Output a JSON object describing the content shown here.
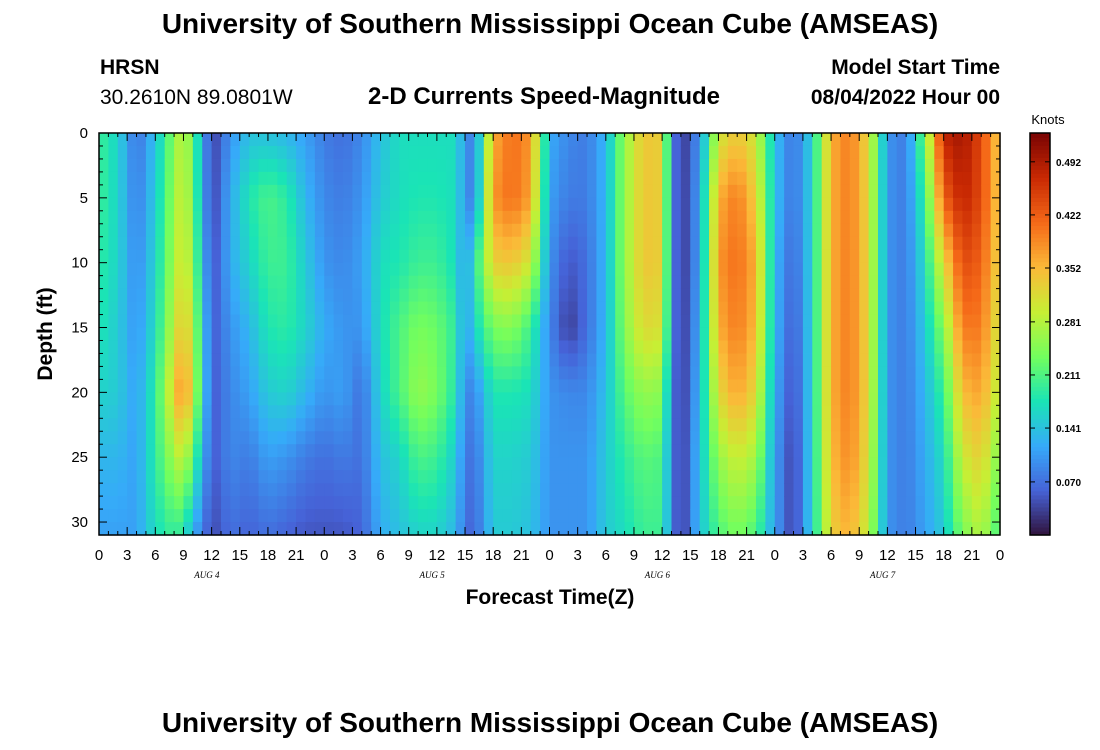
{
  "header": {
    "title": "University of Southern Mississippi Ocean Cube (AMSEAS)",
    "station": "HRSN",
    "coords": "30.2610N  89.0801W",
    "subtitle": "2-D Currents Speed-Magnitude",
    "model_start_label": "Model Start Time",
    "model_start_value": "08/04/2022 Hour 00"
  },
  "footer": {
    "title": "University of Southern Mississippi Ocean Cube (AMSEAS)"
  },
  "colors": {
    "colormap": [
      "#30123b",
      "#4662d7",
      "#36aaf9",
      "#1ae4b6",
      "#72fe5e",
      "#c7ef34",
      "#fbb938",
      "#f56918",
      "#c92903",
      "#7a0403"
    ]
  },
  "chart_data": {
    "type": "heatmap",
    "xlabel": "Forecast Time(Z)",
    "ylabel": "Depth (ft)",
    "xlim": [
      0,
      96
    ],
    "ylim": [
      31,
      0
    ],
    "x_tick_values": [
      0,
      3,
      6,
      9,
      12,
      15,
      18,
      21,
      24,
      27,
      30,
      33,
      36,
      39,
      42,
      45,
      48,
      51,
      54,
      57,
      60,
      63,
      66,
      69,
      72,
      75,
      78,
      81,
      84,
      87,
      90,
      93,
      96
    ],
    "x_tick_labels": [
      "0",
      "3",
      "6",
      "9",
      "12",
      "15",
      "18",
      "21",
      "0",
      "3",
      "6",
      "9",
      "12",
      "15",
      "18",
      "21",
      "0",
      "3",
      "6",
      "9",
      "12",
      "15",
      "18",
      "21",
      "0",
      "3",
      "6",
      "9",
      "12",
      "15",
      "18",
      "21",
      "0"
    ],
    "day_label_positions": [
      11.5,
      35.5,
      59.5,
      83.5
    ],
    "day_labels": [
      "AUG 4",
      "AUG 5",
      "AUG 6",
      "AUG 7"
    ],
    "y_tick_values": [
      0,
      5,
      10,
      15,
      20,
      25,
      30
    ],
    "y_tick_labels": [
      "0",
      "5",
      "10",
      "15",
      "20",
      "25",
      "30"
    ],
    "colorbar": {
      "label": "Knots",
      "range": [
        0.0,
        0.53
      ],
      "tick_values": [
        0.07,
        0.141,
        0.211,
        0.281,
        0.352,
        0.422,
        0.492
      ],
      "tick_labels": [
        "0.070",
        "0.141",
        "0.211",
        "0.281",
        "0.352",
        "0.422",
        "0.492"
      ]
    },
    "grid_x_hours": [
      0,
      2,
      4,
      6,
      8,
      9,
      10,
      12,
      14,
      16,
      18,
      20,
      22,
      24,
      26,
      28,
      30,
      32,
      34,
      36,
      38,
      39,
      40,
      42,
      44,
      46,
      48,
      50,
      52,
      54,
      56,
      58,
      60,
      61,
      62,
      64,
      66,
      68,
      70,
      72,
      74,
      76,
      78,
      80,
      82,
      84,
      86,
      88,
      90,
      92,
      94,
      96
    ],
    "grid_depths_ft": [
      0,
      5,
      10,
      15,
      20,
      25,
      31
    ],
    "speed_knots_columns": [
      [
        0.2,
        0.2,
        0.19,
        0.18,
        0.16,
        0.13,
        0.11
      ],
      [
        0.16,
        0.16,
        0.16,
        0.15,
        0.15,
        0.13,
        0.11
      ],
      [
        0.07,
        0.08,
        0.09,
        0.1,
        0.11,
        0.11,
        0.11
      ],
      [
        0.14,
        0.15,
        0.16,
        0.17,
        0.19,
        0.19,
        0.17
      ],
      [
        0.25,
        0.26,
        0.27,
        0.29,
        0.33,
        0.27,
        0.2
      ],
      [
        0.3,
        0.31,
        0.32,
        0.35,
        0.4,
        0.3,
        0.18
      ],
      [
        0.22,
        0.23,
        0.25,
        0.28,
        0.3,
        0.22,
        0.12
      ],
      [
        0.03,
        0.03,
        0.04,
        0.05,
        0.05,
        0.05,
        0.04
      ],
      [
        0.1,
        0.12,
        0.12,
        0.1,
        0.09,
        0.09,
        0.07
      ],
      [
        0.14,
        0.18,
        0.16,
        0.13,
        0.11,
        0.08,
        0.06
      ],
      [
        0.14,
        0.21,
        0.2,
        0.18,
        0.15,
        0.11,
        0.07
      ],
      [
        0.13,
        0.19,
        0.2,
        0.19,
        0.16,
        0.1,
        0.06
      ],
      [
        0.11,
        0.13,
        0.15,
        0.16,
        0.13,
        0.08,
        0.05
      ],
      [
        0.08,
        0.09,
        0.1,
        0.12,
        0.1,
        0.07,
        0.05
      ],
      [
        0.07,
        0.08,
        0.09,
        0.1,
        0.11,
        0.08,
        0.05
      ],
      [
        0.09,
        0.1,
        0.11,
        0.1,
        0.07,
        0.07,
        0.06
      ],
      [
        0.14,
        0.15,
        0.17,
        0.17,
        0.16,
        0.14,
        0.12
      ],
      [
        0.17,
        0.17,
        0.18,
        0.21,
        0.21,
        0.16,
        0.14
      ],
      [
        0.17,
        0.18,
        0.2,
        0.24,
        0.26,
        0.21,
        0.16
      ],
      [
        0.17,
        0.18,
        0.2,
        0.23,
        0.24,
        0.2,
        0.16
      ],
      [
        0.17,
        0.17,
        0.17,
        0.19,
        0.18,
        0.15,
        0.13
      ],
      [
        0.1,
        0.1,
        0.1,
        0.1,
        0.09,
        0.08,
        0.07
      ],
      [
        0.08,
        0.08,
        0.18,
        0.16,
        0.09,
        0.07,
        0.06
      ],
      [
        0.36,
        0.38,
        0.33,
        0.24,
        0.18,
        0.16,
        0.15
      ],
      [
        0.41,
        0.41,
        0.34,
        0.25,
        0.18,
        0.16,
        0.15
      ],
      [
        0.38,
        0.37,
        0.3,
        0.2,
        0.17,
        0.15,
        0.14
      ],
      [
        0.12,
        0.11,
        0.1,
        0.09,
        0.1,
        0.1,
        0.1
      ],
      [
        0.09,
        0.08,
        0.05,
        0.03,
        0.09,
        0.1,
        0.1
      ],
      [
        0.08,
        0.08,
        0.07,
        0.07,
        0.09,
        0.1,
        0.1
      ],
      [
        0.13,
        0.13,
        0.13,
        0.13,
        0.14,
        0.15,
        0.15
      ],
      [
        0.26,
        0.26,
        0.26,
        0.25,
        0.22,
        0.19,
        0.17
      ],
      [
        0.34,
        0.34,
        0.34,
        0.32,
        0.26,
        0.22,
        0.2
      ],
      [
        0.33,
        0.33,
        0.33,
        0.31,
        0.25,
        0.21,
        0.2
      ],
      [
        0.1,
        0.1,
        0.1,
        0.1,
        0.09,
        0.09,
        0.09
      ],
      [
        0.02,
        0.02,
        0.02,
        0.02,
        0.02,
        0.02,
        0.02
      ],
      [
        0.1,
        0.11,
        0.11,
        0.12,
        0.13,
        0.14,
        0.14
      ],
      [
        0.3,
        0.36,
        0.38,
        0.36,
        0.32,
        0.26,
        0.21
      ],
      [
        0.34,
        0.4,
        0.41,
        0.4,
        0.37,
        0.3,
        0.24
      ],
      [
        0.3,
        0.33,
        0.36,
        0.35,
        0.32,
        0.27,
        0.21
      ],
      [
        0.14,
        0.14,
        0.13,
        0.13,
        0.12,
        0.11,
        0.11
      ],
      [
        0.07,
        0.07,
        0.06,
        0.05,
        0.04,
        0.03,
        0.03
      ],
      [
        0.16,
        0.16,
        0.16,
        0.16,
        0.16,
        0.16,
        0.16
      ],
      [
        0.36,
        0.36,
        0.36,
        0.36,
        0.36,
        0.35,
        0.33
      ],
      [
        0.4,
        0.4,
        0.4,
        0.4,
        0.4,
        0.39,
        0.36
      ],
      [
        0.32,
        0.32,
        0.32,
        0.32,
        0.32,
        0.31,
        0.29
      ],
      [
        0.1,
        0.1,
        0.1,
        0.1,
        0.1,
        0.1,
        0.1
      ],
      [
        0.08,
        0.08,
        0.08,
        0.08,
        0.08,
        0.08,
        0.08
      ],
      [
        0.24,
        0.2,
        0.17,
        0.15,
        0.13,
        0.12,
        0.11
      ],
      [
        0.48,
        0.42,
        0.32,
        0.25,
        0.2,
        0.17,
        0.15
      ],
      [
        0.5,
        0.48,
        0.44,
        0.4,
        0.35,
        0.3,
        0.24
      ],
      [
        0.44,
        0.44,
        0.42,
        0.4,
        0.37,
        0.33,
        0.28
      ],
      [
        0.33,
        0.33,
        0.32,
        0.3,
        0.28,
        0.24,
        0.2
      ]
    ]
  }
}
